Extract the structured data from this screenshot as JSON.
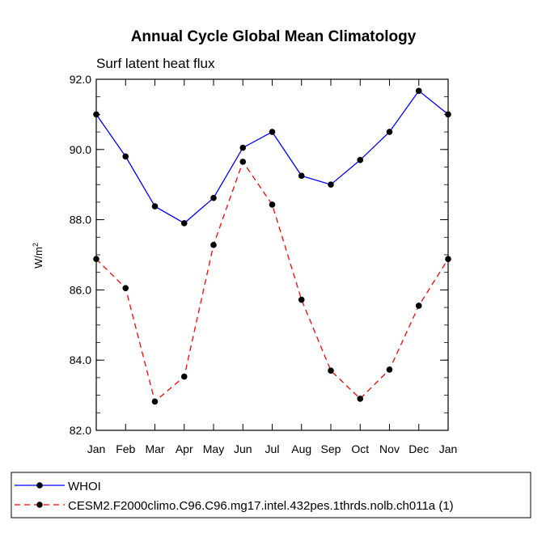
{
  "chart_data": {
    "type": "line",
    "title": "Annual Cycle Global Mean Climatology",
    "subtitle": "Surf latent heat flux",
    "ylabel": "W/m",
    "ylabel_superscript": "2",
    "xlabel": "",
    "categories": [
      "Jan",
      "Feb",
      "Mar",
      "Apr",
      "May",
      "Jun",
      "Jul",
      "Aug",
      "Sep",
      "Oct",
      "Nov",
      "Dec",
      "Jan"
    ],
    "ylim": [
      82.0,
      92.0
    ],
    "yticks": [
      "82.0",
      "84.0",
      "86.0",
      "88.0",
      "90.0",
      "92.0"
    ],
    "series": [
      {
        "name": "WHOI",
        "color": "#0000ff",
        "dash": "solid",
        "values": [
          91.0,
          89.8,
          88.38,
          87.9,
          88.62,
          90.05,
          90.5,
          89.25,
          89.0,
          89.7,
          90.5,
          91.67,
          91.0
        ]
      },
      {
        "name": "CESM2.F2000climo.C96.C96.mg17.intel.432pes.1thrds.nolb.ch011a (1)",
        "color": "#ff0000",
        "dash": "dashed",
        "values": [
          86.88,
          86.05,
          82.82,
          83.53,
          87.28,
          89.65,
          88.43,
          85.72,
          83.7,
          82.9,
          83.73,
          85.55,
          86.88
        ]
      }
    ],
    "legend_position": "bottom"
  }
}
